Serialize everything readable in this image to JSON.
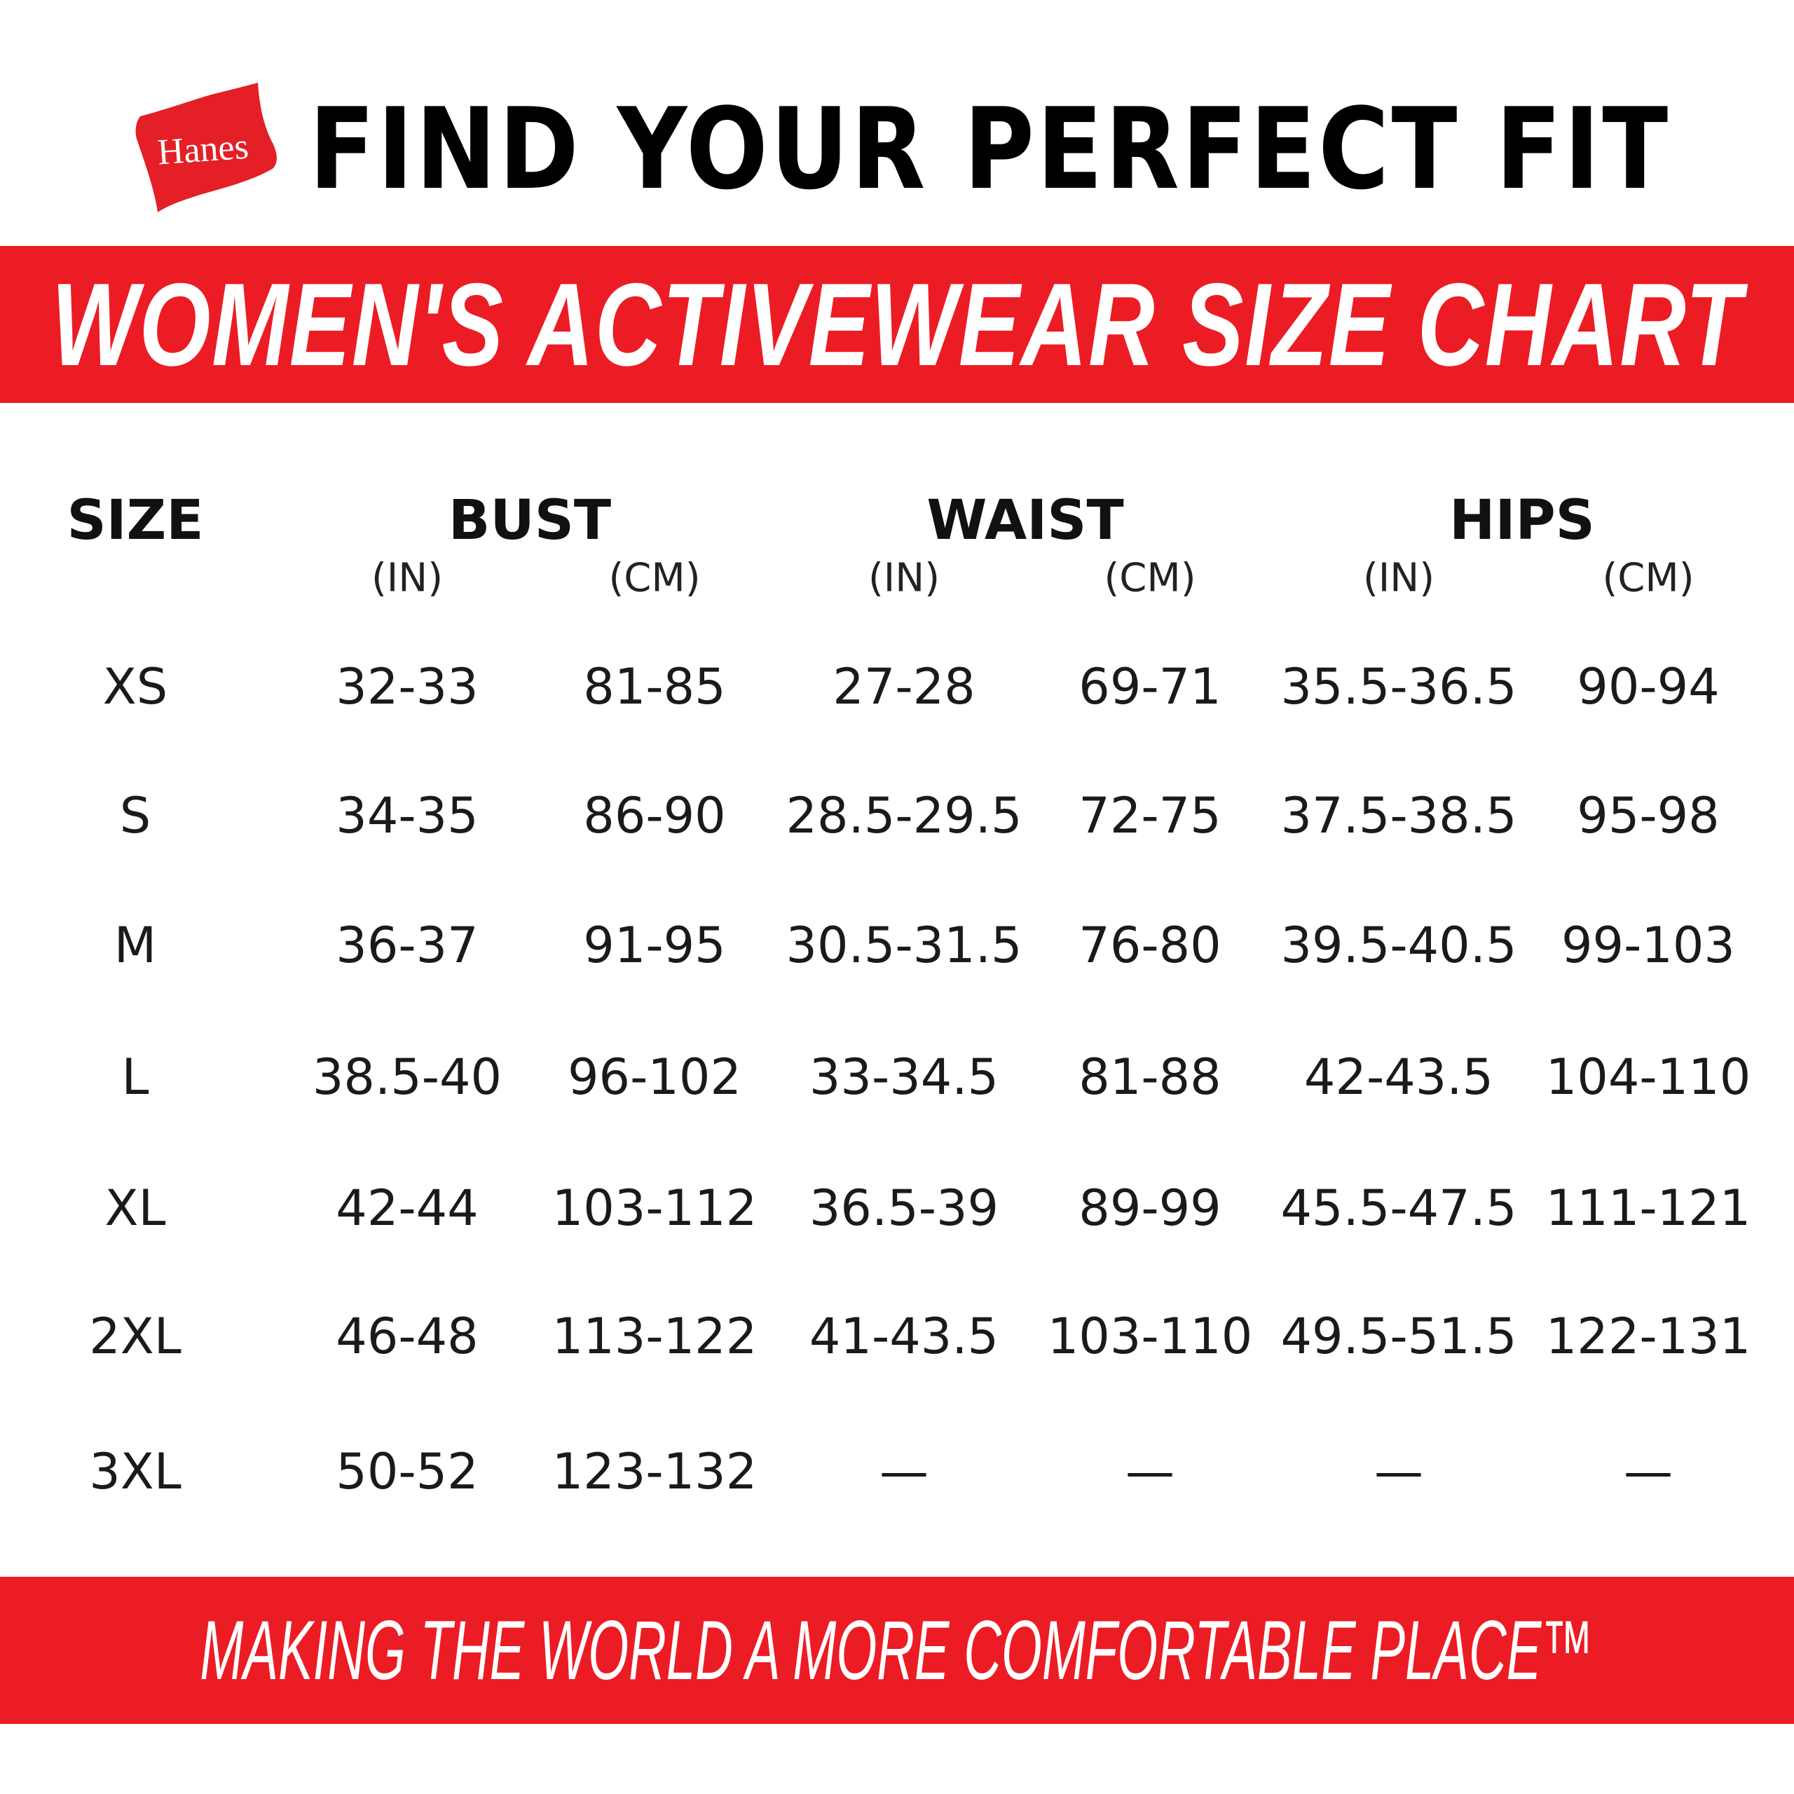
{
  "brand": {
    "logo_text": "Hanes",
    "color": "#ec1c24"
  },
  "header": {
    "title": "FIND YOUR PERFECT FIT"
  },
  "banner": {
    "title": "WOMEN'S ACTIVEWEAR SIZE CHART"
  },
  "footer": {
    "tagline": "MAKING THE WORLD A MORE COMFORTABLE PLACE™"
  },
  "table": {
    "group_headers": [
      "SIZE",
      "BUST",
      "WAIST",
      "HIPS"
    ],
    "unit_headers": [
      "(IN)",
      "(CM)",
      "(IN)",
      "(CM)",
      "(IN)",
      "(CM)"
    ],
    "rows": [
      [
        "XS",
        "32-33",
        "81-85",
        "27-28",
        "69-71",
        "35.5-36.5",
        "90-94"
      ],
      [
        "S",
        "34-35",
        "86-90",
        "28.5-29.5",
        "72-75",
        "37.5-38.5",
        "95-98"
      ],
      [
        "M",
        "36-37",
        "91-95",
        "30.5-31.5",
        "76-80",
        "39.5-40.5",
        "99-103"
      ],
      [
        "L",
        "38.5-40",
        "96-102",
        "33-34.5",
        "81-88",
        "42-43.5",
        "104-110"
      ],
      [
        "XL",
        "42-44",
        "103-112",
        "36.5-39",
        "89-99",
        "45.5-47.5",
        "111-121"
      ],
      [
        "2XL",
        "46-48",
        "113-122",
        "41-43.5",
        "103-110",
        "49.5-51.5",
        "122-131"
      ],
      [
        "3XL",
        "50-52",
        "123-132",
        "—",
        "—",
        "—",
        "—"
      ]
    ]
  }
}
